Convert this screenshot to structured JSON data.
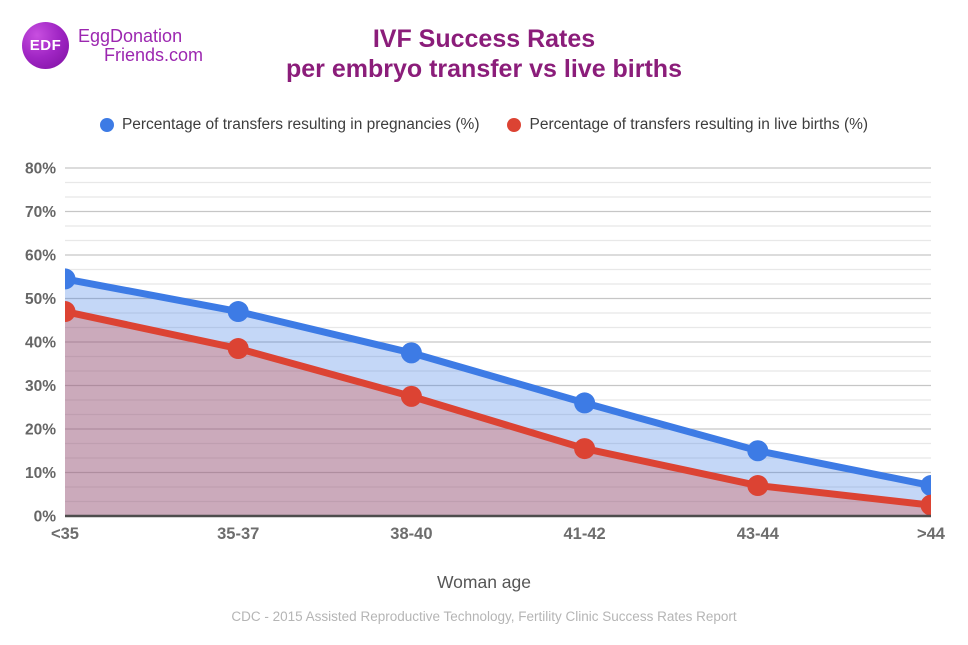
{
  "logo": {
    "badge": "EDF",
    "brand_line1": "EggDonation",
    "brand_line2": "Friends.com"
  },
  "title": {
    "line1": "IVF Success Rates",
    "line2": "per embryo transfer vs live births"
  },
  "legend": [
    {
      "label": "Percentage of transfers resulting in pregnancies (%)",
      "color": "#3d7be5"
    },
    {
      "label": "Percentage of transfers resulting in live births (%)",
      "color": "#dc4333"
    }
  ],
  "chart_data": {
    "type": "area",
    "categories": [
      "<35",
      "35-37",
      "38-40",
      "41-42",
      "43-44",
      ">44"
    ],
    "series": [
      {
        "name": "Percentage of transfers resulting in pregnancies (%)",
        "color": "#3d7be5",
        "values": [
          54.5,
          47,
          37.5,
          26,
          15,
          7
        ]
      },
      {
        "name": "Percentage of transfers resulting in live births (%)",
        "color": "#dc4333",
        "values": [
          47,
          38.5,
          27.5,
          15.5,
          7,
          2.5
        ]
      }
    ],
    "xlabel": "Woman age",
    "ylabel": "",
    "ylim": [
      0,
      80
    ],
    "y_major_step": 10,
    "y_minor_per_major": 3,
    "y_tick_suffix": "%",
    "grid": true,
    "legend_position": "top",
    "area_opacity": 0.3
  },
  "footer": {
    "source": "CDC - 2015 Assisted Reproductive Technology, Fertility Clinic Success Rates Report"
  }
}
